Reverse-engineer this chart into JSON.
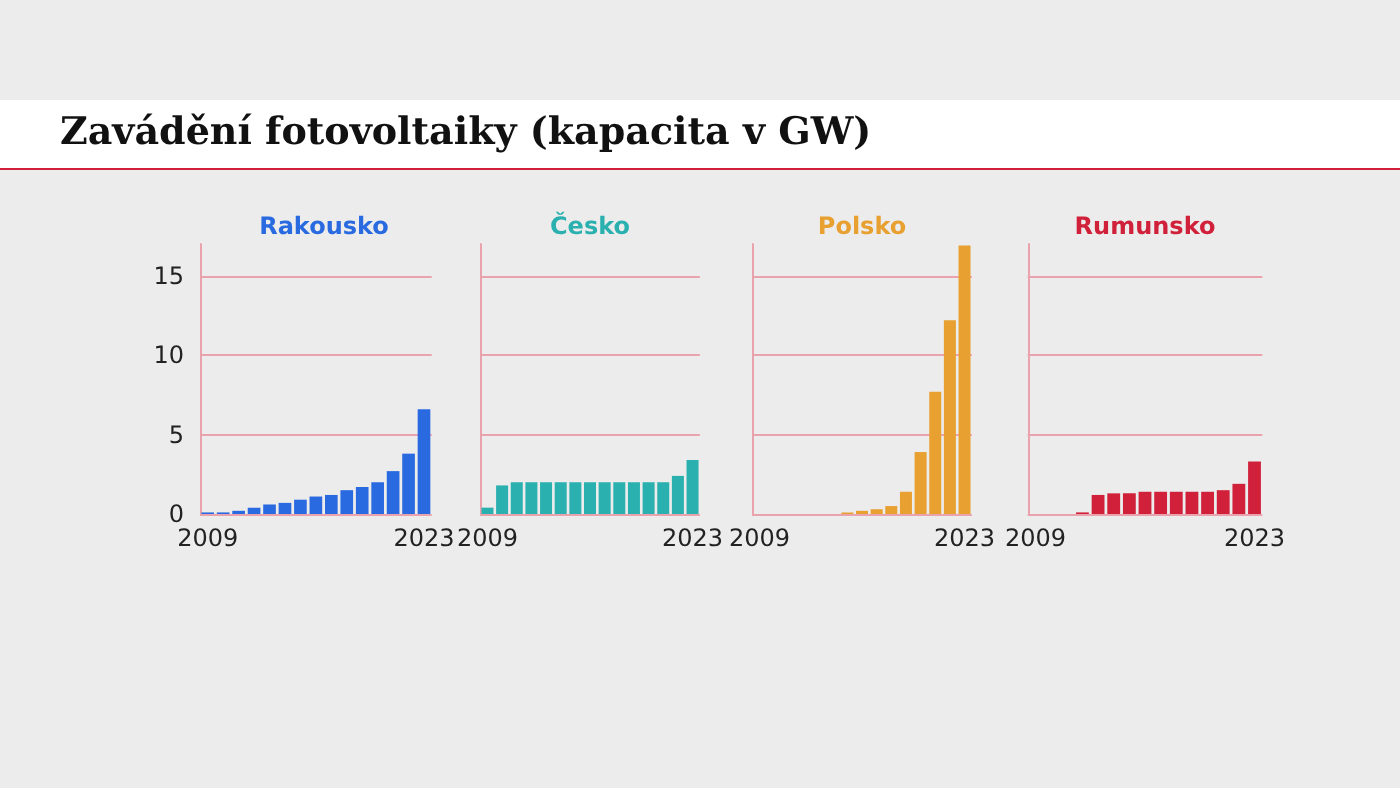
{
  "chart_data": [
    {
      "type": "other",
      "title": "Zavádění fotovoltaiky (kapacita v GW)"
    },
    {
      "type": "bar",
      "title": "Rakousko",
      "categories": [
        "2009",
        null,
        null,
        null,
        null,
        null,
        null,
        null,
        null,
        null,
        null,
        null,
        null,
        null,
        "2023"
      ],
      "series": [
        {
          "color": "#2a6ae0",
          "values": [
            0.1,
            0.1,
            0.2,
            0.4,
            0.6,
            0.7,
            0.9,
            1.1,
            1.2,
            1.5,
            1.7,
            2.0,
            2.7,
            3.8,
            6.6
          ]
        }
      ],
      "ylim": [
        0,
        17
      ],
      "yticks": [
        0,
        5,
        10,
        15
      ],
      "grid": "y"
    },
    {
      "type": "bar",
      "title": "Česko",
      "categories": [
        "2009",
        null,
        null,
        null,
        null,
        null,
        null,
        null,
        null,
        null,
        null,
        null,
        null,
        null,
        "2023"
      ],
      "series": [
        {
          "color": "#2bb0b0",
          "values": [
            0.4,
            1.8,
            2.0,
            2.0,
            2.0,
            2.0,
            2.0,
            2.0,
            2.0,
            2.0,
            2.0,
            2.0,
            2.0,
            2.4,
            3.4
          ]
        }
      ],
      "ylim": [
        0,
        17
      ],
      "yticks": [
        0,
        5,
        10,
        15
      ],
      "grid": "y",
      "tick_labels": "x"
    },
    {
      "type": "bar",
      "title": "Polsko",
      "categories": [
        "2009",
        null,
        null,
        null,
        null,
        null,
        null,
        null,
        null,
        null,
        null,
        null,
        null,
        null,
        "2023"
      ],
      "series": [
        {
          "color": "#e8a030",
          "values": [
            0,
            0,
            0,
            0,
            0,
            0,
            0.1,
            0.2,
            0.3,
            0.5,
            1.4,
            3.9,
            7.7,
            12.2,
            16.9
          ]
        }
      ],
      "ylim": [
        0,
        17
      ],
      "yticks": [
        0,
        5,
        10,
        15
      ],
      "grid": "y",
      "tick_labels": "x"
    },
    {
      "type": "bar",
      "title": "Rumunsko",
      "categories": [
        "2009",
        null,
        null,
        null,
        null,
        null,
        null,
        null,
        null,
        null,
        null,
        null,
        null,
        null,
        "2023"
      ],
      "series": [
        {
          "color": "#d0203a",
          "values": [
            0,
            0,
            0,
            0.1,
            1.2,
            1.3,
            1.3,
            1.4,
            1.4,
            1.4,
            1.4,
            1.4,
            1.5,
            1.9,
            3.3
          ]
        }
      ],
      "ylim": [
        0,
        17
      ],
      "yticks": [
        0,
        5,
        10,
        15
      ],
      "grid": "y",
      "tick_labels": "x"
    }
  ]
}
